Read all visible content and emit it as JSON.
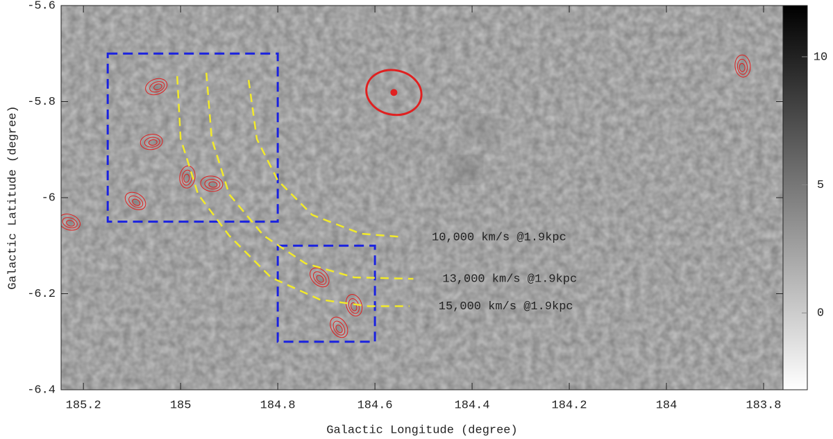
{
  "chart_data": {
    "type": "image",
    "x_label": "Galactic Longitude (degree)",
    "y_label": "Galactic Latitude (degree)",
    "xlim": [
      185.246,
      183.76
    ],
    "ylim": [
      -6.4,
      -5.6
    ],
    "xticks": [
      185.2,
      185,
      184.8,
      184.6,
      184.4,
      184.2,
      184,
      183.8
    ],
    "yticks": [
      -5.6,
      -5.8,
      -6,
      -6.2,
      -6.4
    ],
    "clim": [
      -3,
      12
    ],
    "cticks": [
      0,
      5,
      10
    ],
    "contour_color": "#e02020",
    "box_color": "#1a22e0",
    "arc_color": "#f2ea2a",
    "boxes": [
      {
        "x": [
          185.15,
          184.8
        ],
        "y": [
          -5.7,
          -6.05
        ]
      },
      {
        "x": [
          184.8,
          184.6
        ],
        "y": [
          -6.1,
          -6.3
        ]
      }
    ],
    "arcs": [
      {
        "label": "10,000 km/s @1.9kpc",
        "x": [
          184.86,
          184.843,
          184.8,
          184.729,
          184.629,
          184.543
        ],
        "y": [
          -5.755,
          -5.878,
          -5.964,
          -6.036,
          -6.075,
          -6.082
        ]
      },
      {
        "label": "13,000 km/s @1.9kpc",
        "x": [
          184.947,
          184.936,
          184.9,
          184.829,
          184.743,
          184.643,
          184.521
        ],
        "y": [
          -5.74,
          -5.877,
          -5.993,
          -6.079,
          -6.137,
          -6.166,
          -6.169
        ]
      },
      {
        "label": "15,000 km/s @1.9kpc",
        "x": [
          185.007,
          185,
          184.964,
          184.9,
          184.814,
          184.714,
          184.614,
          184.529
        ],
        "y": [
          -5.747,
          -5.877,
          -5.993,
          -6.079,
          -6.166,
          -6.212,
          -6.226,
          -6.226
        ]
      }
    ],
    "sources": {
      "x": [
        185.05,
        185.06,
        184.936,
        185.229,
        185.093,
        184.714,
        184.674,
        184.643,
        183.843,
        184.986
      ],
      "y": [
        -5.769,
        -5.884,
        -5.971,
        -6.051,
        -6.007,
        -6.166,
        -6.27,
        -6.224,
        -5.726,
        -5.957
      ]
    },
    "beam": {
      "x": 184.561,
      "y": -5.781
    }
  }
}
